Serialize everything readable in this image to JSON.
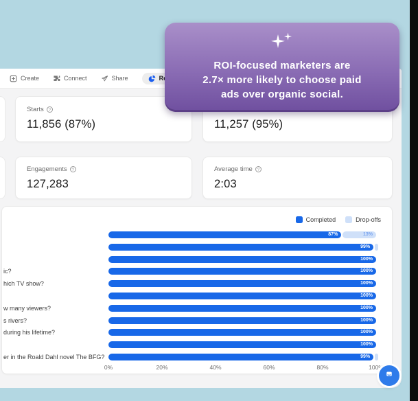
{
  "nav": {
    "items": [
      {
        "label": "Create",
        "icon": "create-icon",
        "active": false
      },
      {
        "label": "Connect",
        "icon": "connect-icon",
        "active": false
      },
      {
        "label": "Share",
        "icon": "share-icon",
        "active": false
      },
      {
        "label": "Results",
        "icon": "results-icon",
        "active": true
      }
    ]
  },
  "tooltip": {
    "icon": "sparkles-icon",
    "lines": [
      "ROI-focused marketers are",
      "2.7× more likely to choose paid",
      "ads over organic social."
    ],
    "gradient_top": "#a98fc9",
    "gradient_bottom": "#6f4f9f"
  },
  "stats": [
    {
      "label": "Starts",
      "value": "11,856 (87%)",
      "info_icon": true
    },
    {
      "label": "",
      "value": "11,257 (95%)",
      "info_icon": false
    },
    {
      "label": "Engagements",
      "value": "127,283",
      "info_icon": true
    },
    {
      "label": "Average time",
      "value": "2:03",
      "info_icon": true
    }
  ],
  "chart_data": {
    "type": "bar",
    "orientation": "horizontal",
    "stacked": true,
    "legend": [
      "Completed",
      "Drop-offs"
    ],
    "legend_position": "top-right",
    "x_ticks": [
      "0%",
      "20%",
      "40%",
      "60%",
      "80%",
      "100%"
    ],
    "xlim": [
      0,
      100
    ],
    "colors": {
      "completed": "#1868e8",
      "dropoffs": "#cfe0f9"
    },
    "rows": [
      {
        "label": "",
        "completed": 87,
        "dropoff": 13
      },
      {
        "label": "",
        "completed": 99,
        "dropoff": 1
      },
      {
        "label": "",
        "completed": 100,
        "dropoff": 0
      },
      {
        "label": "ic?",
        "completed": 100,
        "dropoff": 0
      },
      {
        "label": "hich TV show?",
        "completed": 100,
        "dropoff": 0
      },
      {
        "label": "",
        "completed": 100,
        "dropoff": 0
      },
      {
        "label": "w many viewers?",
        "completed": 100,
        "dropoff": 0
      },
      {
        "label": "s rivers?",
        "completed": 100,
        "dropoff": 0
      },
      {
        "label": "during his lifetime?",
        "completed": 100,
        "dropoff": 0
      },
      {
        "label": "",
        "completed": 100,
        "dropoff": 0
      },
      {
        "label": "er in the Roald Dahl novel The BFG?",
        "completed": 99,
        "dropoff": 1
      }
    ]
  },
  "colors": {
    "outer_background": "#b3d7e2",
    "screen_edge": "#0b0b0b",
    "app_background": "#f4f4f5",
    "accent_blue": "#1868e8",
    "dropoff_blue": "#cfe0f9",
    "chat_button": "#2e7bea"
  }
}
